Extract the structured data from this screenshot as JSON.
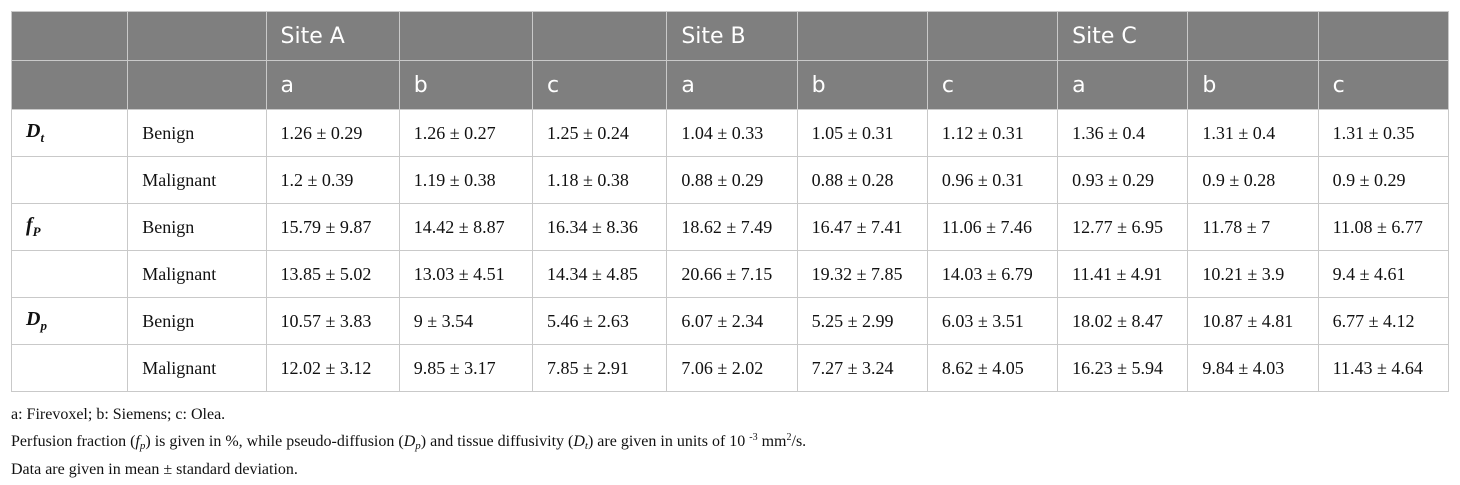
{
  "header": {
    "sites": [
      "Site A",
      "",
      "",
      "Site B",
      "",
      "",
      "Site C",
      "",
      ""
    ],
    "methods": [
      "a",
      "b",
      "c",
      "a",
      "b",
      "c",
      "a",
      "b",
      "c"
    ]
  },
  "rows": [
    {
      "param": "D",
      "param_sub": "t",
      "group": "Benign",
      "values": [
        "1.26 ± 0.29",
        "1.26 ± 0.27",
        "1.25 ± 0.24",
        "1.04 ± 0.33",
        "1.05 ± 0.31",
        "1.12 ± 0.31",
        "1.36 ± 0.4",
        "1.31 ± 0.4",
        "1.31 ± 0.35"
      ]
    },
    {
      "param": "",
      "param_sub": "",
      "group": "Malignant",
      "values": [
        "1.2 ± 0.39",
        "1.19 ± 0.38",
        "1.18 ± 0.38",
        "0.88 ± 0.29",
        "0.88 ± 0.28",
        "0.96 ± 0.31",
        "0.93 ± 0.29",
        "0.9 ± 0.28",
        "0.9 ± 0.29"
      ]
    },
    {
      "param": "f",
      "param_sub": "P",
      "group": "Benign",
      "values": [
        "15.79 ± 9.87",
        "14.42 ± 8.87",
        "16.34 ± 8.36",
        "18.62 ± 7.49",
        "16.47 ± 7.41",
        "11.06 ± 7.46",
        "12.77 ± 6.95",
        "11.78 ± 7",
        "11.08 ± 6.77"
      ]
    },
    {
      "param": "",
      "param_sub": "",
      "group": "Malignant",
      "values": [
        "13.85 ± 5.02",
        "13.03 ± 4.51",
        "14.34 ± 4.85",
        "20.66 ± 7.15",
        "19.32 ± 7.85",
        "14.03 ± 6.79",
        "11.41 ± 4.91",
        "10.21 ± 3.9",
        "9.4 ± 4.61"
      ]
    },
    {
      "param": "D",
      "param_sub": "p",
      "group": "Benign",
      "values": [
        "10.57 ± 3.83",
        "9 ± 3.54",
        "5.46 ± 2.63",
        "6.07 ± 2.34",
        "5.25 ± 2.99",
        "6.03 ± 3.51",
        "18.02 ± 8.47",
        "10.87 ± 4.81",
        "6.77 ± 4.12"
      ]
    },
    {
      "param": "",
      "param_sub": "",
      "group": "Malignant",
      "values": [
        "12.02 ± 3.12",
        "9.85 ± 3.17",
        "7.85 ± 2.91",
        "7.06 ± 2.02",
        "7.27 ± 3.24",
        "8.62 ± 4.05",
        "16.23 ± 5.94",
        "9.84 ± 4.03",
        "11.43 ± 4.64"
      ]
    }
  ],
  "notes": {
    "line1": "a: Firevoxel; b: Siemens; c: Olea.",
    "line2": {
      "t1": "Perfusion fraction (",
      "fp": "f",
      "fp_sub": "p",
      "t2": ") is given in %, while pseudo-diffusion (",
      "dp": "D",
      "dp_sub": "p",
      "t3": ") and tissue diffusivity (",
      "dt": "D",
      "dt_sub": "t",
      "t4": ") are given in units of 10 ",
      "exp": "-3",
      "t5": " mm",
      "sq": "2",
      "t6": "/s."
    },
    "line3": "Data are given in mean ± standard deviation."
  }
}
